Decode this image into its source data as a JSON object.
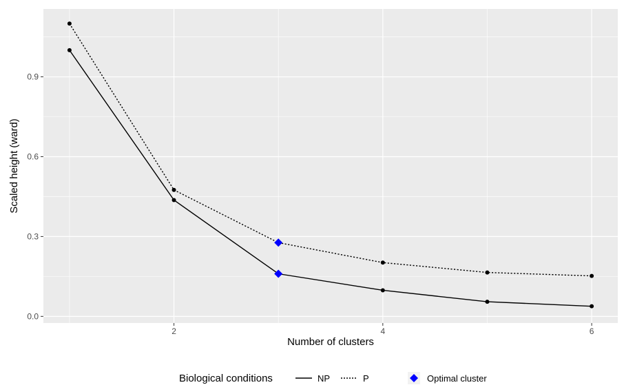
{
  "chart_data": {
    "type": "line",
    "xlabel": "Number of clusters",
    "ylabel": "Scaled height (ward)",
    "xlim": [
      0.75,
      6.25
    ],
    "ylim": [
      -0.025,
      1.155
    ],
    "x_ticks": [
      2,
      4,
      6
    ],
    "y_ticks": [
      0.0,
      0.3,
      0.6,
      0.9
    ],
    "y_tick_labels": [
      "0.0",
      "0.3",
      "0.6",
      "0.9"
    ],
    "grid": true,
    "series": [
      {
        "name": "NP",
        "linetype": "solid",
        "x": [
          1,
          2,
          3,
          4,
          5,
          6
        ],
        "values": [
          1.0,
          0.437,
          0.16,
          0.098,
          0.055,
          0.038
        ]
      },
      {
        "name": "P",
        "linetype": "dotted",
        "x": [
          1,
          2,
          3,
          4,
          5,
          6
        ],
        "values": [
          1.1,
          0.475,
          0.277,
          0.202,
          0.165,
          0.152
        ]
      }
    ],
    "optimal_points": [
      {
        "series": "NP",
        "x": 3,
        "y": 0.16
      },
      {
        "series": "P",
        "x": 3,
        "y": 0.277
      }
    ],
    "marker_color": "#0000ff",
    "point_color": "#000000",
    "panel_color": "#ebebeb",
    "legend": {
      "position": "bottom",
      "title": "Biological conditions",
      "optimal_label": "Optimal cluster"
    }
  }
}
